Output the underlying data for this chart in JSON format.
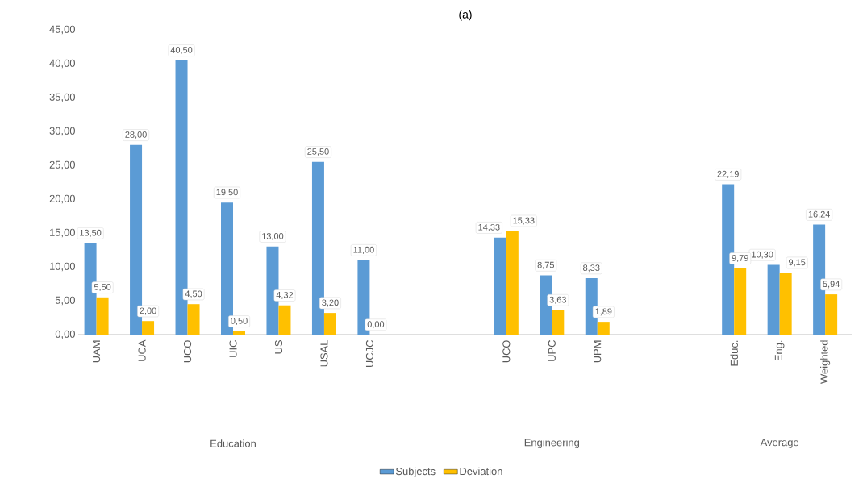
{
  "chart_data": {
    "type": "bar",
    "title": "(a)",
    "categories": [
      "UAM",
      "UCA",
      "UCO",
      "UIC",
      "US",
      "USAL",
      "UCJC",
      null,
      null,
      "UCO",
      "UPC",
      "UPM",
      null,
      null,
      "Educ.",
      "Eng.",
      "Weighted"
    ],
    "series": [
      {
        "name": "Subjects",
        "color": "#5b9bd5",
        "values": [
          13.5,
          28,
          40.5,
          19.5,
          13,
          25.5,
          11,
          null,
          null,
          14.33,
          8.75,
          8.33,
          null,
          null,
          22.19,
          10.3,
          16.24
        ],
        "value_labels": [
          "13,50",
          "28,00",
          "40,50",
          "19,50",
          "13,00",
          "25,50",
          "11,00",
          null,
          null,
          "14,33",
          "8,75",
          "8,33",
          null,
          null,
          "22,19",
          "10,30",
          "16,24"
        ]
      },
      {
        "name": "Deviation",
        "color": "#ffc000",
        "values": [
          5.5,
          2,
          4.5,
          0.5,
          4.32,
          3.2,
          0,
          null,
          null,
          15.33,
          3.63,
          1.89,
          null,
          null,
          9.79,
          9.15,
          5.94
        ],
        "value_labels": [
          "5,50",
          "2,00",
          "4,50",
          "0,50",
          "4,32",
          "3,20",
          "0,00",
          null,
          null,
          "15,33",
          "3,63",
          "1,89",
          null,
          null,
          "9,79",
          "9,15",
          "5,94"
        ]
      }
    ],
    "ylim": [
      0,
      45
    ],
    "yticks": [
      {
        "value": 0,
        "label": "0,00"
      },
      {
        "value": 5,
        "label": "5,00"
      },
      {
        "value": 10,
        "label": "10,00"
      },
      {
        "value": 15,
        "label": "15,00"
      },
      {
        "value": 20,
        "label": "20,00"
      },
      {
        "value": 25,
        "label": "25,00"
      },
      {
        "value": 30,
        "label": "30,00"
      },
      {
        "value": 35,
        "label": "35,00"
      },
      {
        "value": 40,
        "label": "40,00"
      },
      {
        "value": 45,
        "label": "45,00"
      }
    ],
    "annotations": [
      "Education",
      "Engineering",
      "Average"
    ],
    "legend": "bottom"
  }
}
